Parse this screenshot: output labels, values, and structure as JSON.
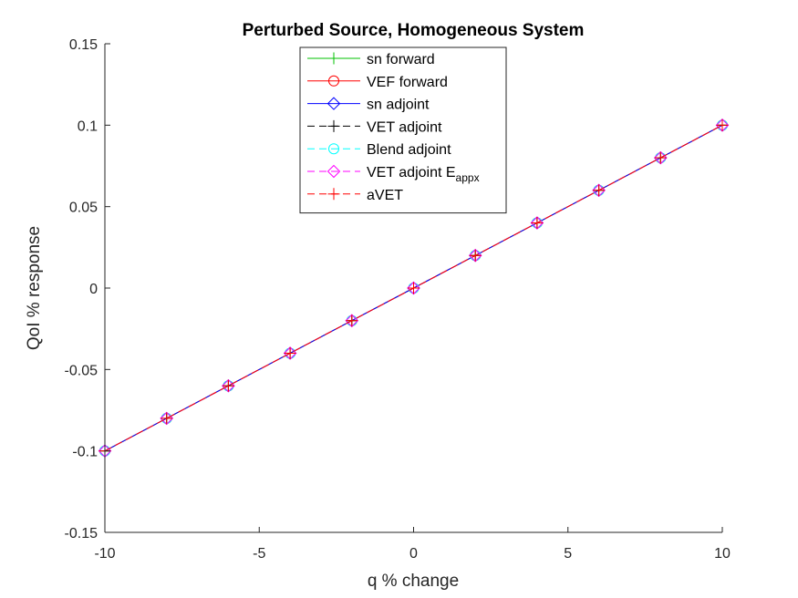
{
  "chart_data": {
    "type": "line",
    "title": "Perturbed Source, Homogeneous System",
    "xlabel": "q % change",
    "ylabel": "QoI % response",
    "xlim": [
      -10,
      10
    ],
    "ylim": [
      -0.15,
      0.15
    ],
    "xticks": [
      -10,
      -5,
      0,
      5,
      10
    ],
    "xtick_labels": [
      "-10",
      "-5",
      "0",
      "5",
      "10"
    ],
    "yticks": [
      -0.15,
      -0.1,
      -0.05,
      0,
      0.05,
      0.1,
      0.15
    ],
    "ytick_labels": [
      "-0.15",
      "-0.1",
      "-0.05",
      "0",
      "0.05",
      "0.1",
      "0.15"
    ],
    "grid": false,
    "legend_position": "top-center",
    "x": [
      -10,
      -8,
      -6,
      -4,
      -2,
      0,
      2,
      4,
      6,
      8,
      10
    ],
    "series": [
      {
        "name": "sn forward",
        "marker": "plus",
        "linestyle": "solid",
        "color": "#00c000",
        "values": [
          -0.1,
          -0.08,
          -0.06,
          -0.04,
          -0.02,
          0,
          0.02,
          0.04,
          0.06,
          0.08,
          0.1
        ]
      },
      {
        "name": "VEF forward",
        "marker": "circle",
        "linestyle": "solid",
        "color": "#ff0000",
        "values": [
          -0.1,
          -0.08,
          -0.06,
          -0.04,
          -0.02,
          0,
          0.02,
          0.04,
          0.06,
          0.08,
          0.1
        ]
      },
      {
        "name": "sn adjoint",
        "marker": "diamond",
        "linestyle": "solid",
        "color": "#0000ff",
        "values": [
          -0.1,
          -0.08,
          -0.06,
          -0.04,
          -0.02,
          0,
          0.02,
          0.04,
          0.06,
          0.08,
          0.1
        ]
      },
      {
        "name": "VET adjoint",
        "marker": "plus",
        "linestyle": "dashed",
        "color": "#000000",
        "values": [
          -0.1,
          -0.08,
          -0.06,
          -0.04,
          -0.02,
          0,
          0.02,
          0.04,
          0.06,
          0.08,
          0.1
        ]
      },
      {
        "name": "Blend adjoint",
        "marker": "circle",
        "linestyle": "dashed",
        "color": "#00ffff",
        "values": [
          -0.1,
          -0.08,
          -0.06,
          -0.04,
          -0.02,
          0,
          0.02,
          0.04,
          0.06,
          0.08,
          0.1
        ]
      },
      {
        "name": "VET adjoint E",
        "name_subscript": "appx",
        "marker": "diamond",
        "linestyle": "dashed",
        "color": "#ff00ff",
        "values": [
          -0.1,
          -0.08,
          -0.06,
          -0.04,
          -0.02,
          0,
          0.02,
          0.04,
          0.06,
          0.08,
          0.1
        ]
      },
      {
        "name": "aVET",
        "marker": "plus",
        "linestyle": "dashed",
        "color": "#ff0000",
        "values": [
          -0.1,
          -0.08,
          -0.06,
          -0.04,
          -0.02,
          0,
          0.02,
          0.04,
          0.06,
          0.08,
          0.1
        ]
      }
    ]
  }
}
